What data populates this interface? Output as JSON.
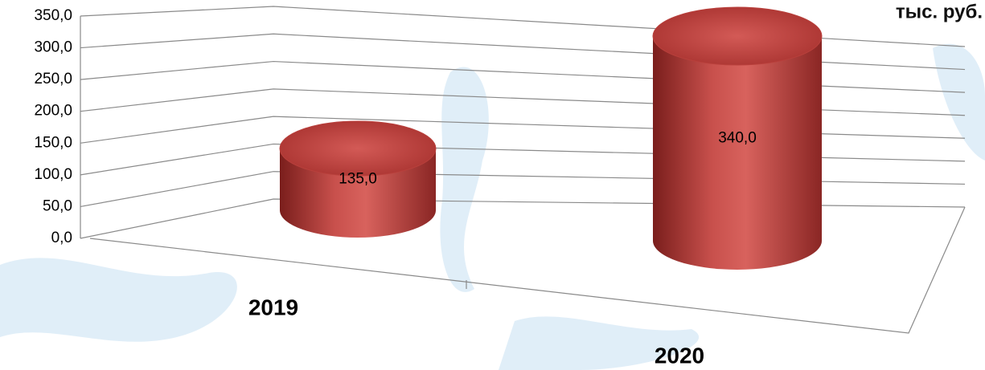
{
  "chart_data": {
    "type": "bar3d",
    "unit": "тыс. руб.",
    "categories": [
      "2019",
      "2020"
    ],
    "values": [
      135,
      340
    ],
    "value_labels": [
      "135,0",
      "340,0"
    ],
    "color": "#c0403c",
    "ylim": [
      0,
      350
    ],
    "yticks": [
      {
        "value": 0,
        "label": "0,0"
      },
      {
        "value": 50,
        "label": "50,0"
      },
      {
        "value": 100,
        "label": "100,0"
      },
      {
        "value": 150,
        "label": "150,0"
      },
      {
        "value": 200,
        "label": "200,0"
      },
      {
        "value": 250,
        "label": "250,0"
      },
      {
        "value": 300,
        "label": "300,0"
      },
      {
        "value": 350,
        "label": "350,0"
      }
    ],
    "grid": true
  }
}
